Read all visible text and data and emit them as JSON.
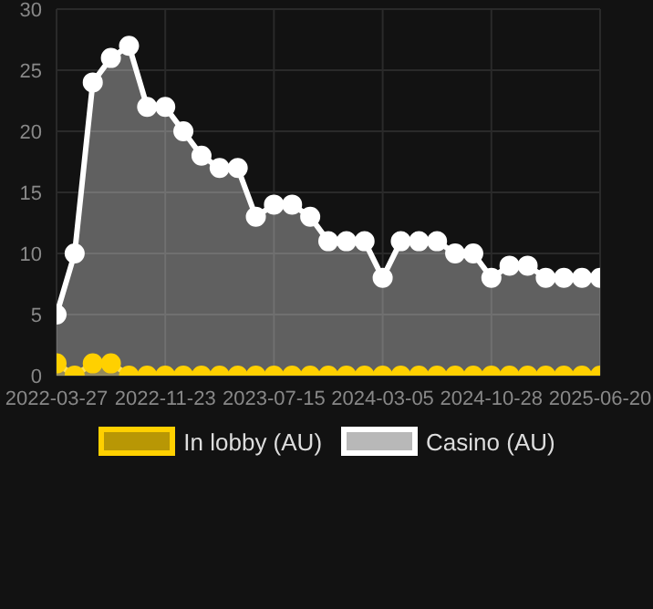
{
  "chart_data": {
    "type": "area",
    "categories": [
      "2022-03-27",
      null,
      null,
      null,
      null,
      null,
      "2022-11-23",
      null,
      null,
      null,
      null,
      null,
      "2023-07-15",
      null,
      null,
      null,
      null,
      null,
      "2024-03-05",
      null,
      null,
      null,
      null,
      null,
      "2024-10-28",
      null,
      null,
      null,
      null,
      null,
      "2025-06-20"
    ],
    "series": [
      {
        "name": "In lobby (AU)",
        "color": "#ffd000",
        "values": [
          1,
          0,
          1,
          1,
          0,
          0,
          0,
          0,
          0,
          0,
          0,
          0,
          0,
          0,
          0,
          0,
          0,
          0,
          0,
          0,
          0,
          0,
          0,
          0,
          0,
          0,
          0,
          0,
          0,
          0,
          0
        ]
      },
      {
        "name": "Casino (AU)",
        "color": "#ffffff",
        "values": [
          5,
          10,
          24,
          26,
          27,
          22,
          22,
          20,
          18,
          17,
          17,
          13,
          14,
          14,
          13,
          11,
          11,
          11,
          8,
          11,
          11,
          11,
          10,
          10,
          8,
          9,
          9,
          8,
          8,
          8,
          8
        ]
      }
    ],
    "ylim": [
      0,
      30
    ],
    "yticks": [
      0,
      5,
      10,
      15,
      20,
      25,
      30
    ],
    "grid": true,
    "legend": "bottom",
    "marker": "circle"
  }
}
